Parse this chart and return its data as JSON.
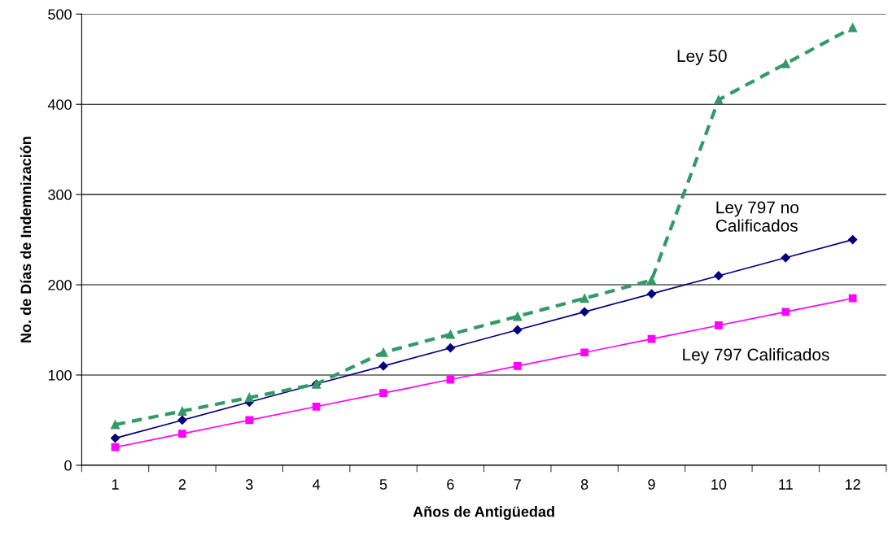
{
  "chart_data": {
    "type": "line",
    "xlabel": "Años de Antigüedad",
    "ylabel": "No. de Días de Indemnización",
    "categories": [
      "1",
      "2",
      "3",
      "4",
      "5",
      "6",
      "7",
      "8",
      "9",
      "10",
      "11",
      "12"
    ],
    "series": [
      {
        "name": "Ley 50",
        "color": "#339966",
        "marker": "triangle",
        "line_style": "dashed",
        "values": [
          45,
          60,
          75,
          90,
          125,
          145,
          165,
          185,
          205,
          405,
          445,
          485
        ]
      },
      {
        "name": "Ley 797 no\nCalificados",
        "color": "#000080",
        "marker": "diamond",
        "line_style": "solid",
        "values": [
          30,
          50,
          70,
          90,
          110,
          130,
          150,
          170,
          190,
          210,
          230,
          250
        ]
      },
      {
        "name": "Ley 797 Calificados",
        "color": "#ff00ff",
        "marker": "square",
        "line_style": "solid",
        "values": [
          20,
          35,
          50,
          65,
          80,
          95,
          110,
          125,
          140,
          155,
          170,
          185
        ]
      }
    ],
    "ylim": [
      0,
      500
    ],
    "yticks": [
      0,
      100,
      200,
      300,
      400,
      500
    ],
    "grid": "y",
    "legend": false
  }
}
